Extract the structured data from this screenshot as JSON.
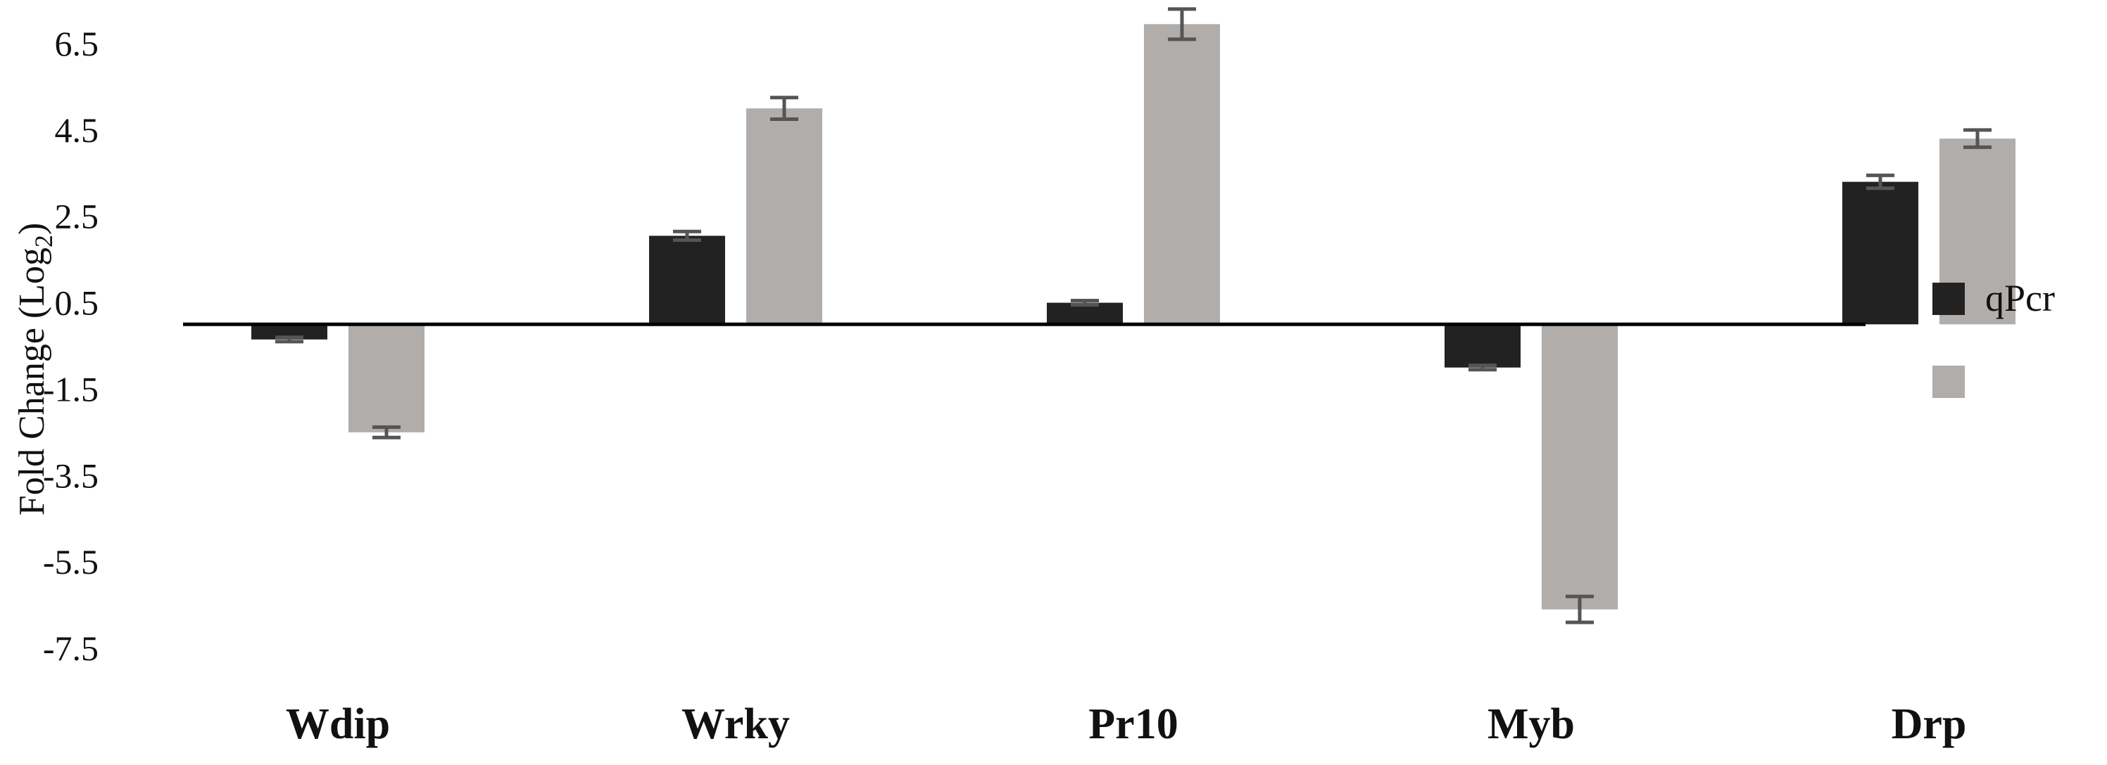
{
  "chart_data": {
    "type": "bar",
    "title": "",
    "xlabel": "",
    "ylabel": {
      "text": "Fold Change (Log",
      "subscript": "2",
      "suffix": ")"
    },
    "ylim": [
      -8.5,
      7.5
    ],
    "yticks": [
      6.5,
      4.5,
      2.5,
      0.5,
      -1.5,
      -3.5,
      -5.5,
      -7.5
    ],
    "ytick_labels": [
      "6.5",
      "4.5",
      "2.5",
      "0.5",
      "-1.5",
      "-3.5",
      "-5.5",
      "-7.5"
    ],
    "categories": [
      "Wdip",
      "Wrky",
      "Pr10",
      "Myb",
      "Drp"
    ],
    "grid": false,
    "legend_position": "right",
    "series": [
      {
        "name": "qPcr",
        "color": "#222222",
        "values": [
          -0.35,
          2.05,
          0.5,
          -1.0,
          3.3
        ],
        "errors": [
          0.05,
          0.1,
          0.05,
          0.05,
          0.15
        ]
      },
      {
        "name": "",
        "color": "#b0adab",
        "values": [
          -2.5,
          5.0,
          6.95,
          -6.6,
          4.3
        ],
        "errors": [
          0.12,
          0.25,
          0.35,
          0.3,
          0.2
        ]
      }
    ]
  }
}
